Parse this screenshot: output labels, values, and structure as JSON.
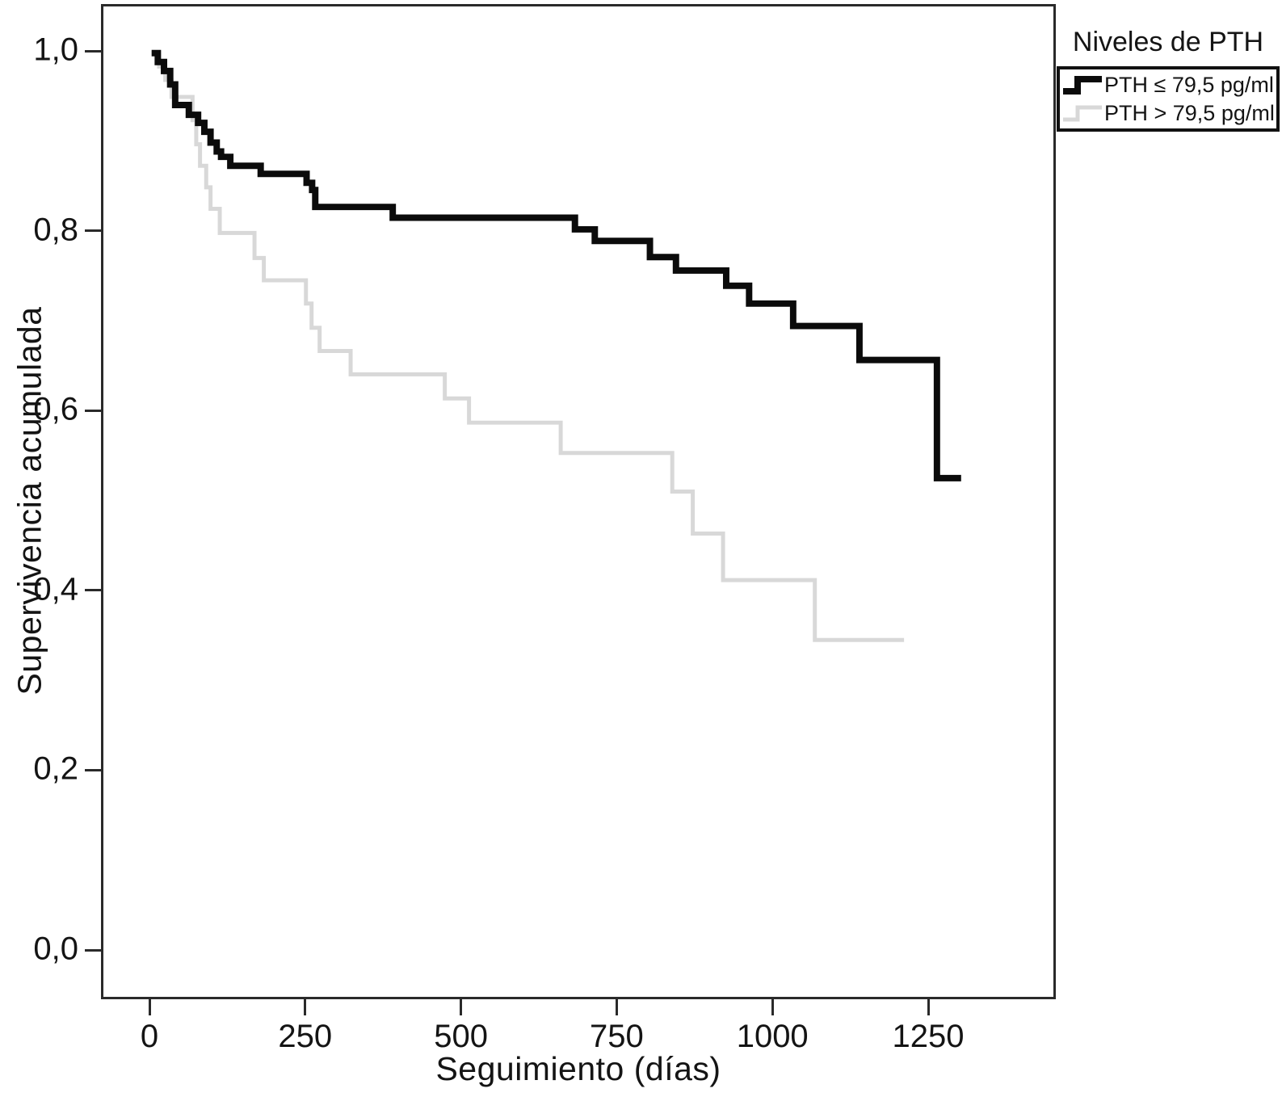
{
  "figure": {
    "x_axis_title": "Seguimiento (días)",
    "y_axis_title": "Supervivencia acumulada",
    "background": "#ffffff",
    "frame_color": "#2a2a2a"
  },
  "legend": {
    "title": "Niveles de PTH",
    "entries": [
      {
        "label": "PTH ≤ 79,5 pg/ml",
        "color": "#0b0b0b",
        "stroke_width": 8
      },
      {
        "label": "PTH > 79,5 pg/ml",
        "color": "#d8d8d8",
        "stroke_width": 5
      }
    ]
  },
  "chart_data": {
    "type": "line",
    "subtype": "kaplan-meier-step",
    "title": "",
    "xlabel": "Seguimiento (días)",
    "ylabel": "Supervivencia acumulada",
    "xlim": [
      0,
      1455
    ],
    "ylim": [
      0.0,
      1.0
    ],
    "grid": false,
    "legend_position": "top-right-outside",
    "x_ticks": [
      {
        "label": "0",
        "value": 0
      },
      {
        "label": "250",
        "value": 250
      },
      {
        "label": "500",
        "value": 500
      },
      {
        "label": "750",
        "value": 750
      },
      {
        "label": "1000",
        "value": 1000
      },
      {
        "label": "1250",
        "value": 1250
      }
    ],
    "y_ticks": [
      {
        "label": "1,0",
        "value": 1.0
      },
      {
        "label": "0,8",
        "value": 0.8
      },
      {
        "label": "0,6",
        "value": 0.6
      },
      {
        "label": "0,4",
        "value": 0.4
      },
      {
        "label": "0,2",
        "value": 0.2
      },
      {
        "label": "0,0",
        "value": 0.0
      }
    ],
    "series": [
      {
        "name": "PTH ≤ 79,5 pg/ml",
        "color": "#0b0b0b",
        "stroke_width": 8,
        "end_day": 1306,
        "points": [
          [
            0,
            1.0
          ],
          [
            10,
            0.99
          ],
          [
            20,
            0.98
          ],
          [
            30,
            0.965
          ],
          [
            38,
            0.942
          ],
          [
            60,
            0.931
          ],
          [
            75,
            0.922
          ],
          [
            85,
            0.912
          ],
          [
            95,
            0.9
          ],
          [
            105,
            0.89
          ],
          [
            112,
            0.884
          ],
          [
            127,
            0.874
          ],
          [
            176,
            0.865
          ],
          [
            250,
            0.855
          ],
          [
            259,
            0.847
          ],
          [
            264,
            0.828
          ],
          [
            389,
            0.816
          ],
          [
            683,
            0.803
          ],
          [
            715,
            0.79
          ],
          [
            804,
            0.772
          ],
          [
            846,
            0.757
          ],
          [
            927,
            0.74
          ],
          [
            964,
            0.72
          ],
          [
            1035,
            0.695
          ],
          [
            1142,
            0.657
          ],
          [
            1267,
            0.525
          ]
        ]
      },
      {
        "name": "PTH > 79,5 pg/ml",
        "color": "#d8d8d8",
        "stroke_width": 5,
        "end_day": 1214,
        "points": [
          [
            0,
            1.0
          ],
          [
            12,
            0.985
          ],
          [
            22,
            0.97
          ],
          [
            32,
            0.951
          ],
          [
            66,
            0.925
          ],
          [
            72,
            0.898
          ],
          [
            78,
            0.874
          ],
          [
            88,
            0.85
          ],
          [
            95,
            0.826
          ],
          [
            110,
            0.799
          ],
          [
            166,
            0.771
          ],
          [
            181,
            0.746
          ],
          [
            249,
            0.72
          ],
          [
            258,
            0.693
          ],
          [
            271,
            0.667
          ],
          [
            321,
            0.641
          ],
          [
            473,
            0.614
          ],
          [
            512,
            0.587
          ],
          [
            660,
            0.553
          ],
          [
            840,
            0.51
          ],
          [
            873,
            0.463
          ],
          [
            922,
            0.411
          ],
          [
            1070,
            0.344
          ]
        ]
      }
    ]
  }
}
